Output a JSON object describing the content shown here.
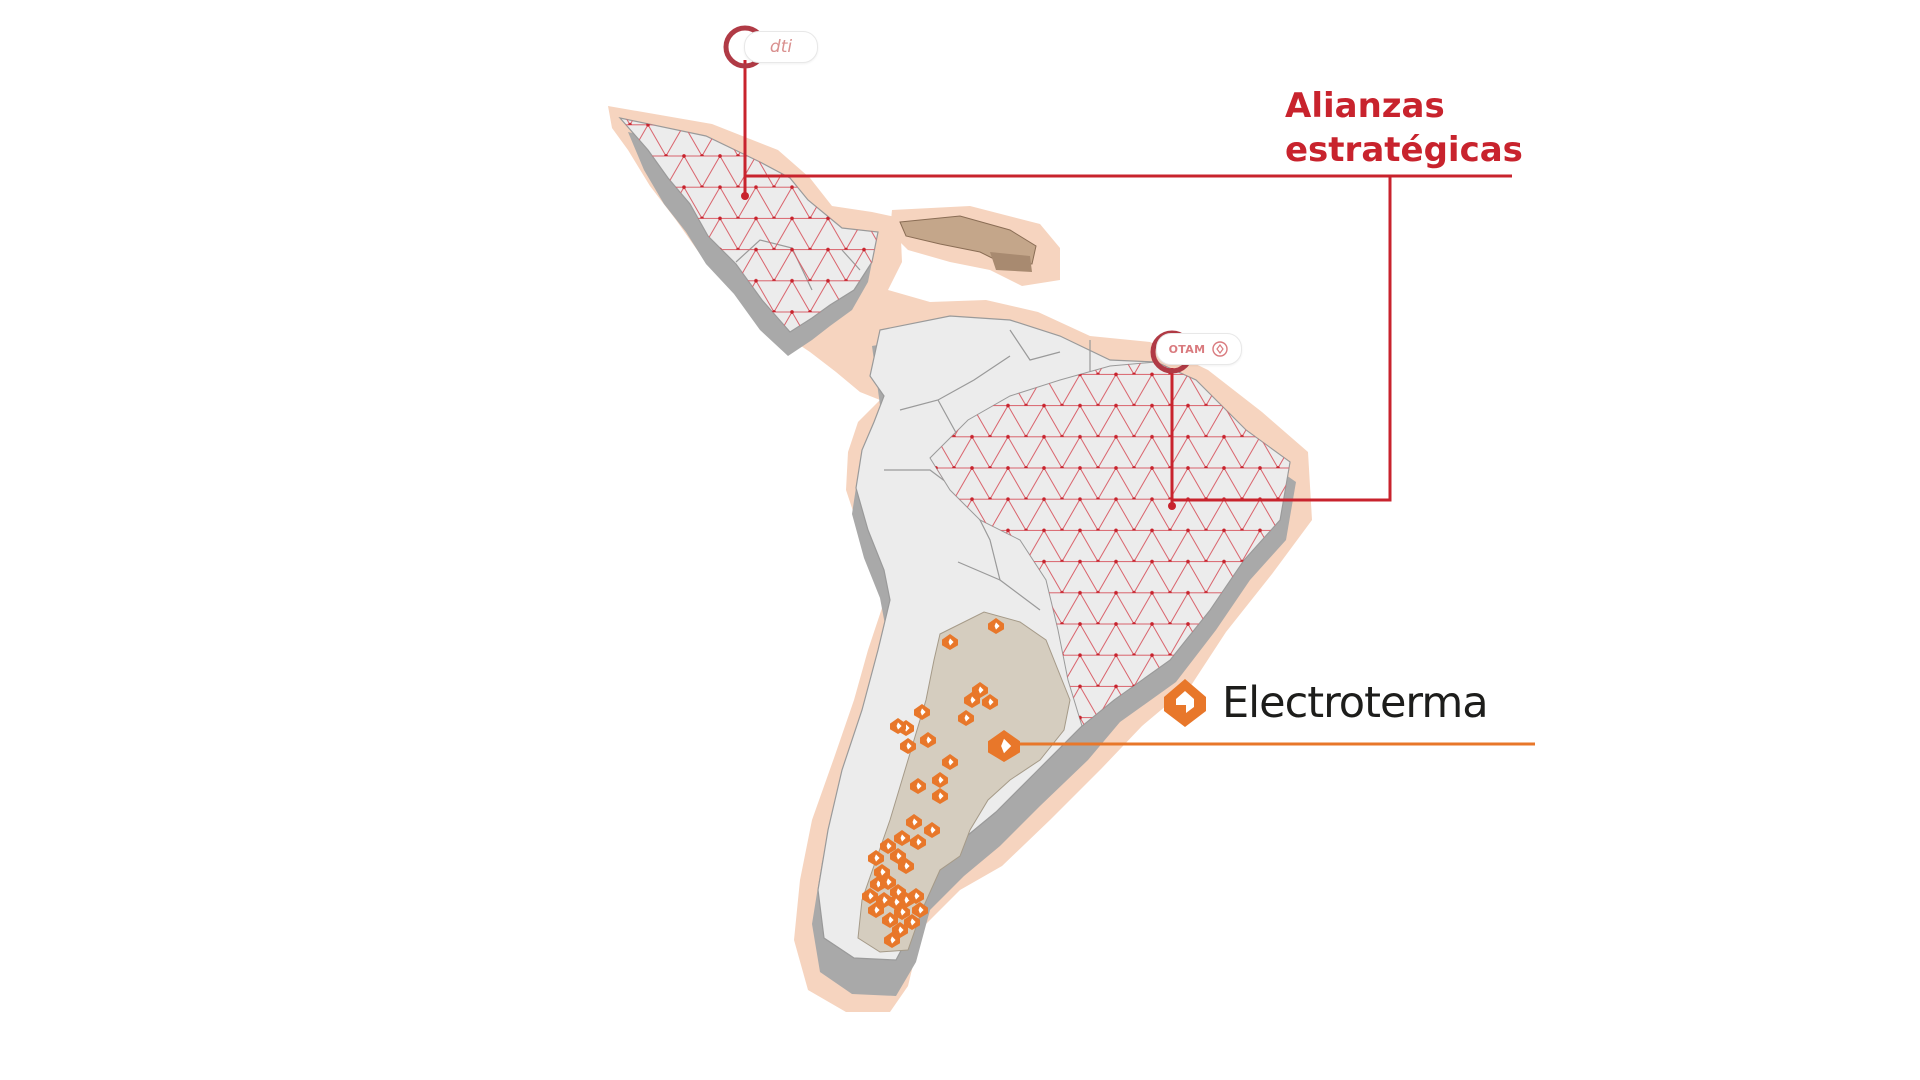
{
  "alliances": {
    "title_line1": "Alianzas",
    "title_line2": "estratégicas",
    "color": "#c8232d"
  },
  "pins": [
    {
      "id": "dti",
      "label": "dti",
      "region": "Mexico",
      "icon": "pin-ring-icon"
    },
    {
      "id": "otam",
      "label": "OTAM",
      "region": "Brazil",
      "icon": "pin-ring-icon"
    }
  ],
  "partner": {
    "name": "Electroterma",
    "region": "Argentina",
    "color": "#e8772a",
    "icon": "electroterma-logo-icon"
  },
  "colors": {
    "land": "#ececec",
    "land_shadow": "#a9a9a9",
    "halo": "#f6d4bf",
    "grid_pattern": "#c8232d",
    "argentina_fill": "#d5cdbf",
    "marker": "#e8772a",
    "caribbean": "#c4a68a"
  },
  "markers": {
    "icon": "electroterma-marker-icon",
    "count": 40
  }
}
